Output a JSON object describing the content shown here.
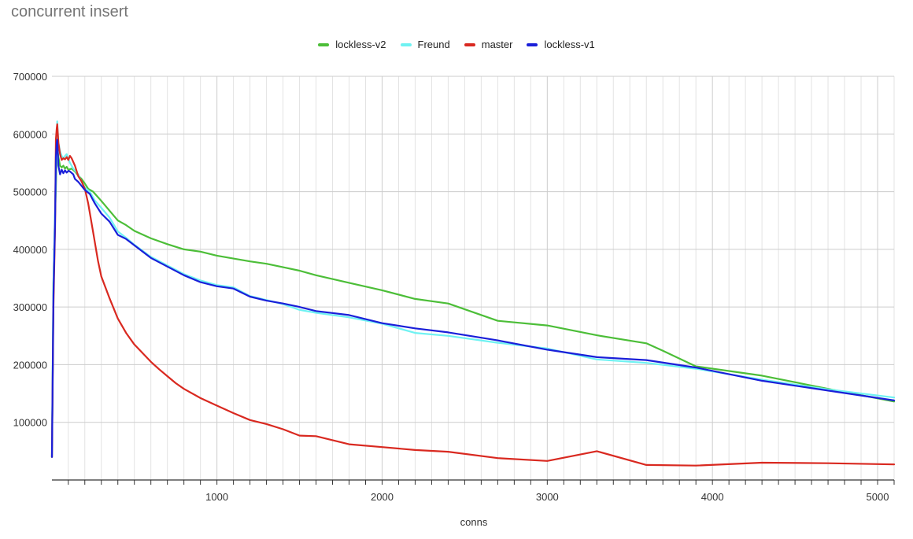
{
  "chart_data": {
    "type": "line",
    "title": "concurrent insert",
    "xlabel": "conns",
    "ylabel": "",
    "xlim": [
      1,
      5100
    ],
    "ylim": [
      0,
      700000
    ],
    "x_ticks": [
      1000,
      2000,
      3000,
      4000,
      5000
    ],
    "x_tick_labels": [
      "1000",
      "2000",
      "3000",
      "4000",
      "5000"
    ],
    "y_ticks": [
      100000,
      200000,
      300000,
      400000,
      500000,
      600000,
      700000
    ],
    "y_tick_labels": [
      "100000",
      "200000",
      "300000",
      "400000",
      "500000",
      "600000",
      "700000"
    ],
    "grid": true,
    "legend_position": "top",
    "series": [
      {
        "name": "lockless-v2",
        "color": "#4cbe38",
        "points": [
          [
            1,
            40000
          ],
          [
            10,
            340000
          ],
          [
            20,
            460000
          ],
          [
            30,
            560000
          ],
          [
            33,
            580000
          ],
          [
            40,
            560000
          ],
          [
            50,
            545000
          ],
          [
            60,
            542000
          ],
          [
            70,
            545000
          ],
          [
            80,
            540000
          ],
          [
            90,
            543000
          ],
          [
            100,
            538000
          ],
          [
            120,
            540000
          ],
          [
            140,
            535000
          ],
          [
            160,
            528000
          ],
          [
            180,
            522000
          ],
          [
            200,
            514000
          ],
          [
            220,
            505000
          ],
          [
            250,
            500000
          ],
          [
            300,
            484000
          ],
          [
            350,
            467000
          ],
          [
            400,
            450000
          ],
          [
            450,
            442000
          ],
          [
            500,
            432000
          ],
          [
            600,
            419000
          ],
          [
            700,
            409000
          ],
          [
            800,
            400000
          ],
          [
            900,
            396000
          ],
          [
            1000,
            389000
          ],
          [
            1100,
            384000
          ],
          [
            1200,
            379000
          ],
          [
            1300,
            375000
          ],
          [
            1400,
            369000
          ],
          [
            1500,
            363000
          ],
          [
            1600,
            355000
          ],
          [
            1800,
            342000
          ],
          [
            2000,
            329000
          ],
          [
            2200,
            314000
          ],
          [
            2400,
            306000
          ],
          [
            2700,
            276000
          ],
          [
            3000,
            268000
          ],
          [
            3300,
            251000
          ],
          [
            3600,
            237000
          ],
          [
            3700,
            224000
          ],
          [
            3900,
            197000
          ],
          [
            4300,
            181000
          ],
          [
            4700,
            158000
          ],
          [
            5100,
            136000
          ]
        ]
      },
      {
        "name": "Freund",
        "color": "#6ff2f2",
        "points": [
          [
            1,
            40000
          ],
          [
            10,
            340000
          ],
          [
            20,
            470000
          ],
          [
            30,
            580000
          ],
          [
            33,
            622000
          ],
          [
            40,
            585000
          ],
          [
            50,
            570000
          ],
          [
            60,
            562000
          ],
          [
            70,
            558000
          ],
          [
            80,
            562000
          ],
          [
            90,
            565000
          ],
          [
            100,
            557000
          ],
          [
            110,
            550000
          ],
          [
            130,
            540000
          ],
          [
            160,
            530000
          ],
          [
            180,
            517000
          ],
          [
            200,
            507000
          ],
          [
            230,
            500000
          ],
          [
            260,
            485000
          ],
          [
            300,
            472000
          ],
          [
            350,
            455000
          ],
          [
            400,
            431000
          ],
          [
            450,
            420000
          ],
          [
            500,
            408000
          ],
          [
            600,
            387000
          ],
          [
            700,
            372000
          ],
          [
            800,
            357000
          ],
          [
            900,
            346000
          ],
          [
            1000,
            338000
          ],
          [
            1100,
            334000
          ],
          [
            1200,
            319000
          ],
          [
            1300,
            312000
          ],
          [
            1400,
            305000
          ],
          [
            1500,
            295000
          ],
          [
            1600,
            290000
          ],
          [
            1800,
            282000
          ],
          [
            2000,
            271000
          ],
          [
            2200,
            255000
          ],
          [
            2400,
            250000
          ],
          [
            2700,
            238000
          ],
          [
            3000,
            228000
          ],
          [
            3300,
            209000
          ],
          [
            3600,
            203000
          ],
          [
            3900,
            193000
          ],
          [
            4300,
            174000
          ],
          [
            4700,
            157000
          ],
          [
            5100,
            143000
          ]
        ]
      },
      {
        "name": "master",
        "color": "#d92920",
        "points": [
          [
            1,
            40000
          ],
          [
            10,
            300000
          ],
          [
            20,
            440000
          ],
          [
            25,
            590000
          ],
          [
            30,
            610000
          ],
          [
            33,
            617000
          ],
          [
            40,
            585000
          ],
          [
            50,
            565000
          ],
          [
            60,
            555000
          ],
          [
            70,
            558000
          ],
          [
            80,
            556000
          ],
          [
            90,
            560000
          ],
          [
            100,
            555000
          ],
          [
            110,
            562000
          ],
          [
            120,
            558000
          ],
          [
            140,
            545000
          ],
          [
            160,
            527000
          ],
          [
            180,
            518000
          ],
          [
            200,
            505000
          ],
          [
            220,
            480000
          ],
          [
            250,
            430000
          ],
          [
            280,
            380000
          ],
          [
            300,
            353000
          ],
          [
            350,
            315000
          ],
          [
            400,
            280000
          ],
          [
            450,
            255000
          ],
          [
            500,
            235000
          ],
          [
            550,
            220000
          ],
          [
            600,
            205000
          ],
          [
            650,
            192000
          ],
          [
            700,
            180000
          ],
          [
            750,
            168000
          ],
          [
            800,
            158000
          ],
          [
            900,
            142000
          ],
          [
            1000,
            129000
          ],
          [
            1100,
            116000
          ],
          [
            1200,
            104000
          ],
          [
            1300,
            97000
          ],
          [
            1400,
            88000
          ],
          [
            1500,
            77000
          ],
          [
            1600,
            76000
          ],
          [
            1800,
            62000
          ],
          [
            2000,
            57000
          ],
          [
            2200,
            52000
          ],
          [
            2400,
            49000
          ],
          [
            2700,
            38000
          ],
          [
            3000,
            33000
          ],
          [
            3300,
            50000
          ],
          [
            3600,
            26000
          ],
          [
            3900,
            25000
          ],
          [
            4300,
            30000
          ],
          [
            4700,
            29000
          ],
          [
            5100,
            27000
          ]
        ]
      },
      {
        "name": "lockless-v1",
        "color": "#1a1fd9",
        "points": [
          [
            1,
            40000
          ],
          [
            10,
            320000
          ],
          [
            20,
            450000
          ],
          [
            25,
            560000
          ],
          [
            30,
            585000
          ],
          [
            33,
            590000
          ],
          [
            40,
            545000
          ],
          [
            50,
            530000
          ],
          [
            60,
            538000
          ],
          [
            70,
            532000
          ],
          [
            80,
            537000
          ],
          [
            90,
            533000
          ],
          [
            100,
            536000
          ],
          [
            110,
            535000
          ],
          [
            130,
            530000
          ],
          [
            140,
            522000
          ],
          [
            160,
            517000
          ],
          [
            180,
            510000
          ],
          [
            200,
            503000
          ],
          [
            230,
            496000
          ],
          [
            260,
            480000
          ],
          [
            300,
            462000
          ],
          [
            350,
            448000
          ],
          [
            400,
            425000
          ],
          [
            450,
            418000
          ],
          [
            500,
            407000
          ],
          [
            600,
            385000
          ],
          [
            700,
            370000
          ],
          [
            800,
            355000
          ],
          [
            900,
            343000
          ],
          [
            1000,
            336000
          ],
          [
            1100,
            332000
          ],
          [
            1200,
            318000
          ],
          [
            1300,
            311000
          ],
          [
            1400,
            306000
          ],
          [
            1500,
            300000
          ],
          [
            1600,
            293000
          ],
          [
            1800,
            286000
          ],
          [
            2000,
            272000
          ],
          [
            2200,
            263000
          ],
          [
            2400,
            256000
          ],
          [
            2700,
            242000
          ],
          [
            3000,
            226000
          ],
          [
            3300,
            213000
          ],
          [
            3600,
            208000
          ],
          [
            3900,
            195000
          ],
          [
            4300,
            172000
          ],
          [
            4700,
            155000
          ],
          [
            5100,
            138000
          ]
        ]
      }
    ]
  }
}
